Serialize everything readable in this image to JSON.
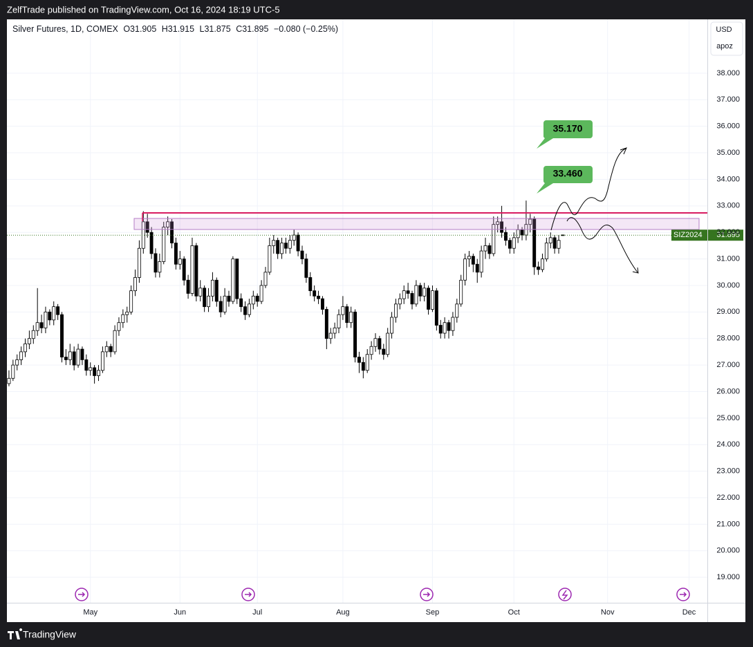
{
  "publisher": "ZelfTrade published on TradingView.com, Oct 16, 2024 18:19 UTC-5",
  "brand": "TradingView",
  "currency": "USD",
  "scale_button": "apoz",
  "chart_data": {
    "type": "candlestick",
    "title": "Silver Futures, 1D, COMEX",
    "ohlc_labels": [
      "O",
      "H",
      "L",
      "C"
    ],
    "change": "−0.080 (−0.25%)",
    "symbol_label": "SIZ2024",
    "annotations": [
      "35.170",
      "33.460"
    ],
    "up_color": "#ffffff",
    "down_color": "#000000",
    "outline_color": "#000000",
    "last_price_color": "#35741f",
    "grid": true,
    "ylim": [
      18.04,
      40.03
    ],
    "yticks": [
      {
        "value": 19,
        "label": "19.000"
      },
      {
        "value": 20,
        "label": "20.000"
      },
      {
        "value": 21,
        "label": "21.000"
      },
      {
        "value": 22,
        "label": "22.000"
      },
      {
        "value": 23,
        "label": "23.000"
      },
      {
        "value": 24,
        "label": "24.000"
      },
      {
        "value": 25,
        "label": "25.000"
      },
      {
        "value": 26,
        "label": "26.000"
      },
      {
        "value": 27,
        "label": "27.000"
      },
      {
        "value": 28,
        "label": "28.000"
      },
      {
        "value": 29,
        "label": "29.000"
      },
      {
        "value": 30,
        "label": "30.000"
      },
      {
        "value": 31,
        "label": "31.000"
      },
      {
        "value": 32,
        "label": "32.000"
      },
      {
        "value": 33,
        "label": "33.000"
      },
      {
        "value": 34,
        "label": "34.000"
      },
      {
        "value": 35,
        "label": "35.000"
      },
      {
        "value": 36,
        "label": "36.000"
      },
      {
        "value": 37,
        "label": "37.000"
      },
      {
        "value": 38,
        "label": "38.000"
      }
    ],
    "categories": [
      null,
      null,
      null,
      null,
      null,
      null,
      null,
      null,
      null,
      null,
      null,
      null,
      null,
      null,
      null,
      null,
      null,
      null,
      null,
      null,
      "May",
      null,
      null,
      null,
      null,
      null,
      null,
      null,
      null,
      null,
      null,
      null,
      null,
      null,
      null,
      null,
      null,
      null,
      null,
      null,
      null,
      null,
      "Jun",
      null,
      null,
      null,
      null,
      null,
      null,
      null,
      null,
      null,
      null,
      null,
      null,
      null,
      null,
      null,
      null,
      null,
      null,
      "Jul",
      null,
      null,
      null,
      null,
      null,
      null,
      null,
      null,
      null,
      null,
      null,
      null,
      null,
      null,
      null,
      null,
      null,
      null,
      null,
      null,
      "Aug",
      null,
      null,
      null,
      null,
      null,
      null,
      null,
      null,
      null,
      null,
      null,
      null,
      null,
      null,
      null,
      null,
      null,
      null,
      null,
      null,
      null,
      "Sep",
      null,
      null,
      null,
      null,
      null,
      null,
      null,
      null,
      null,
      null,
      null,
      null,
      null,
      null,
      null,
      null,
      null,
      null,
      null,
      "Oct",
      null,
      null,
      null,
      null,
      null,
      null,
      null,
      null,
      null,
      null,
      null,
      null,
      null,
      null,
      null,
      null,
      null,
      null,
      null,
      null,
      null,
      null,
      "Nov",
      null,
      null,
      null,
      null,
      null,
      null,
      null,
      null,
      null,
      null,
      null,
      null,
      null,
      null,
      null,
      null,
      null,
      null,
      null,
      "Dec",
      null,
      null,
      null,
      null
    ],
    "values": [
      [
        26.3,
        26.8,
        26.2,
        26.5
      ],
      [
        26.5,
        27.2,
        26.4,
        27.0
      ],
      [
        27.0,
        27.4,
        26.8,
        27.2
      ],
      [
        27.2,
        27.7,
        27.0,
        27.5
      ],
      [
        27.5,
        28.0,
        27.3,
        27.8
      ],
      [
        27.8,
        28.3,
        27.6,
        28.0
      ],
      [
        28.0,
        28.5,
        27.8,
        28.3
      ],
      [
        28.3,
        29.9,
        28.1,
        28.6
      ],
      [
        28.6,
        28.9,
        28.2,
        28.4
      ],
      [
        28.4,
        29.2,
        28.2,
        29.0
      ],
      [
        29.0,
        29.1,
        28.5,
        28.7
      ],
      [
        28.7,
        29.4,
        28.5,
        29.2
      ],
      [
        29.2,
        29.3,
        28.7,
        28.9
      ],
      [
        28.9,
        29.0,
        27.1,
        27.3
      ],
      [
        27.3,
        27.6,
        27.0,
        27.2
      ],
      [
        27.2,
        27.8,
        27.0,
        27.5
      ],
      [
        27.5,
        27.7,
        26.8,
        27.0
      ],
      [
        27.0,
        27.8,
        26.9,
        27.6
      ],
      [
        27.6,
        27.7,
        27.0,
        27.2
      ],
      [
        27.2,
        27.4,
        26.6,
        26.8
      ],
      [
        26.8,
        27.1,
        26.6,
        26.9
      ],
      [
        26.9,
        27.0,
        26.3,
        26.6
      ],
      [
        26.6,
        27.0,
        26.4,
        26.8
      ],
      [
        26.8,
        27.7,
        26.7,
        27.5
      ],
      [
        27.5,
        27.9,
        27.3,
        27.7
      ],
      [
        27.7,
        27.8,
        27.3,
        27.5
      ],
      [
        27.5,
        28.5,
        27.4,
        28.3
      ],
      [
        28.3,
        28.8,
        28.1,
        28.6
      ],
      [
        28.6,
        29.1,
        28.4,
        28.9
      ],
      [
        28.9,
        29.2,
        28.6,
        29.0
      ],
      [
        29.0,
        30.0,
        28.9,
        29.8
      ],
      [
        29.8,
        30.6,
        29.6,
        30.3
      ],
      [
        30.3,
        31.7,
        30.1,
        31.4
      ],
      [
        31.4,
        32.8,
        31.2,
        32.4
      ],
      [
        32.4,
        32.7,
        31.8,
        32.0
      ],
      [
        32.0,
        32.2,
        31.0,
        31.2
      ],
      [
        31.2,
        31.4,
        30.3,
        30.5
      ],
      [
        30.5,
        31.2,
        30.3,
        30.9
      ],
      [
        30.9,
        32.4,
        30.8,
        32.2
      ],
      [
        32.2,
        32.6,
        31.9,
        32.4
      ],
      [
        32.4,
        32.5,
        31.4,
        31.6
      ],
      [
        31.6,
        31.8,
        30.6,
        30.8
      ],
      [
        30.8,
        31.3,
        30.6,
        31.0
      ],
      [
        31.0,
        31.1,
        30.0,
        30.2
      ],
      [
        30.2,
        30.4,
        29.5,
        29.7
      ],
      [
        29.7,
        31.8,
        29.6,
        31.5
      ],
      [
        31.5,
        31.6,
        29.4,
        29.6
      ],
      [
        29.6,
        30.2,
        29.4,
        29.9
      ],
      [
        29.9,
        30.0,
        29.0,
        29.2
      ],
      [
        29.2,
        29.9,
        29.0,
        29.6
      ],
      [
        29.6,
        30.5,
        29.4,
        30.2
      ],
      [
        30.2,
        30.3,
        29.2,
        29.4
      ],
      [
        29.4,
        29.6,
        28.8,
        29.0
      ],
      [
        29.0,
        29.9,
        28.9,
        29.6
      ],
      [
        29.6,
        29.8,
        29.2,
        29.4
      ],
      [
        29.4,
        31.1,
        29.3,
        31.0
      ],
      [
        31.0,
        31.0,
        29.3,
        29.5
      ],
      [
        29.5,
        29.7,
        29.0,
        29.2
      ],
      [
        29.2,
        29.4,
        28.7,
        28.9
      ],
      [
        28.9,
        29.5,
        28.8,
        29.3
      ],
      [
        29.3,
        29.8,
        29.1,
        29.6
      ],
      [
        29.6,
        29.7,
        29.2,
        29.4
      ],
      [
        29.4,
        30.2,
        29.3,
        30.0
      ],
      [
        30.0,
        30.7,
        29.9,
        30.5
      ],
      [
        30.5,
        31.8,
        30.4,
        31.5
      ],
      [
        31.5,
        31.9,
        31.2,
        31.7
      ],
      [
        31.7,
        31.8,
        31.0,
        31.2
      ],
      [
        31.2,
        31.8,
        31.0,
        31.6
      ],
      [
        31.6,
        31.8,
        31.2,
        31.4
      ],
      [
        31.4,
        31.9,
        31.2,
        31.7
      ],
      [
        31.7,
        32.1,
        31.5,
        31.9
      ],
      [
        31.9,
        32.0,
        31.1,
        31.3
      ],
      [
        31.3,
        31.5,
        30.8,
        31.0
      ],
      [
        31.0,
        31.2,
        30.1,
        30.3
      ],
      [
        30.3,
        30.5,
        29.6,
        29.8
      ],
      [
        29.8,
        30.0,
        29.4,
        29.6
      ],
      [
        29.6,
        29.8,
        29.3,
        29.5
      ],
      [
        29.5,
        29.6,
        28.9,
        29.1
      ],
      [
        29.1,
        29.2,
        27.6,
        28.0
      ],
      [
        28.0,
        28.4,
        27.8,
        28.2
      ],
      [
        28.2,
        28.6,
        28.0,
        28.4
      ],
      [
        28.4,
        29.1,
        28.2,
        28.9
      ],
      [
        28.9,
        29.6,
        28.7,
        29.2
      ],
      [
        29.2,
        29.3,
        28.4,
        28.6
      ],
      [
        28.6,
        29.2,
        28.4,
        29.0
      ],
      [
        29.0,
        29.1,
        27.1,
        27.3
      ],
      [
        27.3,
        27.5,
        26.7,
        27.1
      ],
      [
        27.1,
        27.3,
        26.5,
        26.8
      ],
      [
        26.8,
        27.6,
        26.7,
        27.4
      ],
      [
        27.4,
        27.9,
        27.2,
        27.7
      ],
      [
        27.7,
        28.2,
        27.5,
        28.0
      ],
      [
        28.0,
        28.1,
        27.4,
        27.6
      ],
      [
        27.6,
        27.8,
        27.2,
        27.4
      ],
      [
        27.4,
        28.4,
        27.3,
        28.2
      ],
      [
        28.2,
        29.0,
        28.0,
        28.8
      ],
      [
        28.8,
        29.5,
        28.6,
        29.3
      ],
      [
        29.3,
        29.7,
        29.1,
        29.5
      ],
      [
        29.5,
        30.0,
        29.3,
        29.8
      ],
      [
        29.8,
        30.1,
        29.5,
        29.7
      ],
      [
        29.7,
        29.8,
        29.1,
        29.3
      ],
      [
        29.3,
        30.2,
        29.2,
        30.0
      ],
      [
        30.0,
        30.1,
        29.4,
        29.6
      ],
      [
        29.6,
        30.1,
        29.4,
        29.9
      ],
      [
        29.9,
        30.0,
        28.9,
        29.1
      ],
      [
        29.1,
        30.0,
        29.0,
        29.8
      ],
      [
        29.8,
        29.9,
        28.3,
        28.5
      ],
      [
        28.5,
        28.7,
        28.0,
        28.2
      ],
      [
        28.2,
        28.8,
        28.0,
        28.6
      ],
      [
        28.6,
        28.7,
        28.0,
        28.3
      ],
      [
        28.3,
        29.0,
        28.1,
        28.8
      ],
      [
        28.8,
        29.5,
        28.6,
        29.3
      ],
      [
        29.3,
        30.4,
        29.2,
        30.2
      ],
      [
        30.2,
        31.2,
        30.0,
        31.0
      ],
      [
        31.0,
        31.3,
        30.7,
        31.1
      ],
      [
        31.1,
        31.2,
        30.5,
        30.8
      ],
      [
        30.8,
        31.0,
        30.1,
        30.5
      ],
      [
        30.5,
        31.5,
        30.3,
        31.3
      ],
      [
        31.3,
        31.8,
        31.0,
        31.5
      ],
      [
        31.5,
        31.6,
        31.0,
        31.2
      ],
      [
        31.2,
        32.6,
        31.1,
        32.3
      ],
      [
        32.3,
        32.6,
        32.0,
        32.4
      ],
      [
        32.4,
        33.0,
        31.8,
        32.0
      ],
      [
        32.0,
        32.2,
        31.5,
        31.7
      ],
      [
        31.7,
        31.8,
        31.2,
        31.4
      ],
      [
        31.4,
        32.0,
        31.2,
        31.8
      ],
      [
        31.8,
        32.3,
        31.6,
        32.1
      ],
      [
        32.1,
        32.2,
        31.7,
        31.9
      ],
      [
        31.9,
        33.2,
        31.7,
        32.3
      ],
      [
        32.3,
        32.7,
        32.0,
        32.5
      ],
      [
        32.5,
        32.6,
        30.4,
        30.7
      ],
      [
        30.7,
        30.9,
        30.4,
        30.6
      ],
      [
        30.6,
        31.2,
        30.5,
        31.0
      ],
      [
        31.0,
        31.8,
        30.9,
        31.6
      ],
      [
        31.6,
        32.0,
        31.4,
        31.8
      ],
      [
        31.8,
        31.9,
        31.2,
        31.4
      ],
      [
        31.4,
        31.9,
        31.2,
        31.7
      ],
      [
        31.905,
        31.915,
        31.875,
        31.895
      ],
      null,
      null,
      null,
      null,
      null,
      null,
      null,
      null,
      null,
      null,
      null,
      null,
      null,
      null,
      null,
      null,
      null,
      null,
      null,
      null,
      null,
      null,
      null,
      null,
      null,
      null,
      null,
      null,
      null,
      null,
      null,
      null,
      null,
      null,
      null
    ]
  }
}
